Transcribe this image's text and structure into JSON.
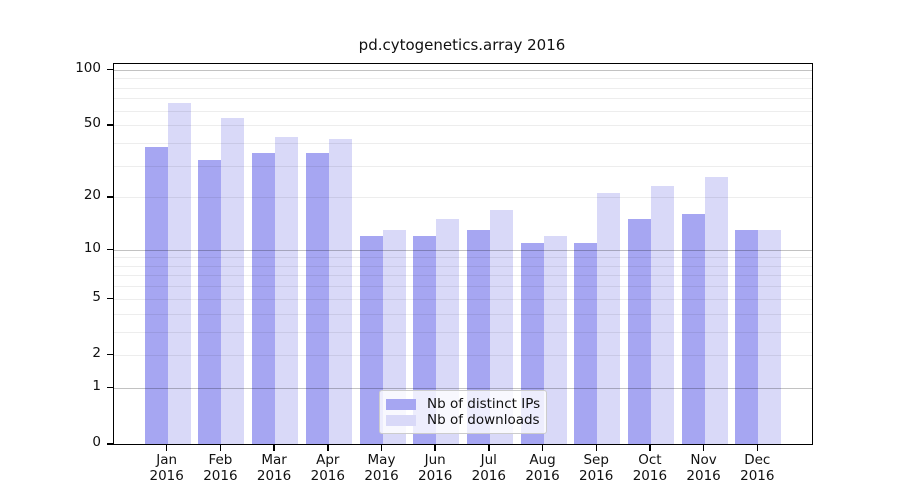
{
  "figure": {
    "background": "#ffffff"
  },
  "chart_data": {
    "type": "bar",
    "title": "pd.cytogenetics.array 2016",
    "categories": [
      "Jan 2016",
      "Feb 2016",
      "Mar 2016",
      "Apr 2016",
      "May 2016",
      "Jun 2016",
      "Jul 2016",
      "Aug 2016",
      "Sep 2016",
      "Oct 2016",
      "Nov 2016",
      "Dec 2016"
    ],
    "series": [
      {
        "name": "Nb of distinct IPs",
        "color": "#a6a6f2",
        "values": [
          38,
          32,
          35,
          35,
          12,
          12,
          13,
          11,
          11,
          15,
          16,
          13
        ]
      },
      {
        "name": "Nb of downloads",
        "color": "#d9d9f8",
        "values": [
          66,
          55,
          43,
          42,
          13,
          15,
          17,
          12,
          21,
          23,
          26,
          13
        ]
      }
    ],
    "xlabel": "",
    "ylabel": "",
    "y_scale": "log1p",
    "ylim": [
      0,
      100
    ],
    "y_ticks": [
      0,
      1,
      2,
      5,
      10,
      20,
      50,
      100
    ],
    "grid_major": [
      1,
      10,
      100
    ],
    "grid_minor": [
      2,
      3,
      4,
      5,
      6,
      7,
      8,
      9,
      20,
      30,
      40,
      50,
      60,
      70,
      80,
      90
    ],
    "grid": "on",
    "legend_position": "lower center",
    "colors": {
      "major_gridline": "#c2c2c2",
      "minor_gridline": "#ededed",
      "axis": "#000000",
      "text": "#111111",
      "legend_border": "#cccccc"
    }
  }
}
